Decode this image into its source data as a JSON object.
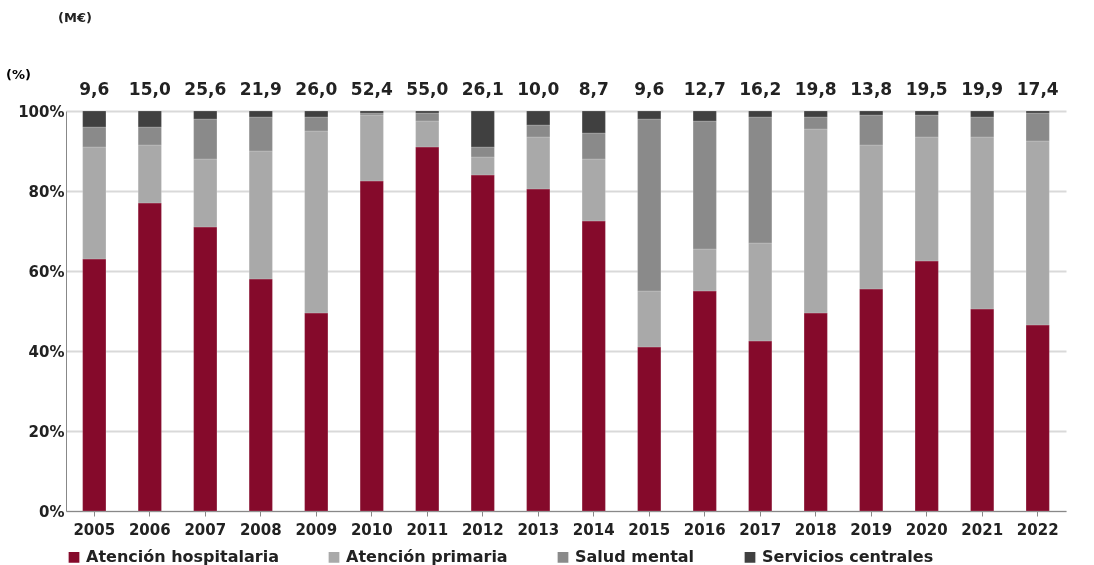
{
  "chart_data": {
    "type": "bar",
    "stacked": true,
    "ylabel": "(%)",
    "categories": [
      "2005",
      "2006",
      "2007",
      "2008",
      "2009",
      "2010",
      "2011",
      "2012",
      "2013",
      "2014",
      "2015",
      "2016",
      "2017",
      "2018",
      "2019",
      "2020",
      "2021",
      "2022"
    ],
    "series": [
      {
        "name": "Atención hospitalaria",
        "color": "#850a2b",
        "values": [
          63,
          77,
          71,
          58,
          49.5,
          82.5,
          91,
          84,
          80.5,
          72.5,
          41,
          55,
          42.5,
          49.5,
          55.5,
          62.5,
          50.5,
          46.5
        ]
      },
      {
        "name": "Atención primaria",
        "color": "#a9a9a9",
        "values": [
          28,
          14.5,
          17,
          32,
          45.5,
          16.5,
          6.5,
          4.5,
          13,
          15.5,
          14,
          10.5,
          24.5,
          46,
          36,
          31,
          43,
          46
        ]
      },
      {
        "name": "Salud mental",
        "color": "#8a8a8a",
        "values": [
          5,
          4.5,
          10,
          8.5,
          3.5,
          0.5,
          2,
          2.5,
          3,
          6.5,
          43,
          32,
          31.5,
          3,
          7.5,
          5.5,
          5,
          7
        ]
      },
      {
        "name": "Servicios centrales",
        "color": "#404040",
        "values": [
          4,
          4,
          2,
          1.5,
          1.5,
          0.5,
          0.5,
          9,
          3.5,
          5.5,
          2,
          2.5,
          1.5,
          1.5,
          1,
          1,
          1.5,
          0.5
        ]
      }
    ],
    "annotations": [
      "(M€)",
      {
        "text": "9,6",
        "x": "2005",
        "y": 100
      },
      {
        "text": "15,0",
        "x": "2006",
        "y": 100
      },
      {
        "text": "25,6",
        "x": "2007",
        "y": 100
      },
      {
        "text": "21,9",
        "x": "2008",
        "y": 100
      },
      {
        "text": "26,0",
        "x": "2009",
        "y": 100
      },
      {
        "text": "52,4",
        "x": "2010",
        "y": 100
      },
      {
        "text": "55,0",
        "x": "2011",
        "y": 100
      },
      {
        "text": "26,1",
        "x": "2012",
        "y": 100
      },
      {
        "text": "10,0",
        "x": "2013",
        "y": 100
      },
      {
        "text": "8,7",
        "x": "2014",
        "y": 100
      },
      {
        "text": "9,6",
        "x": "2015",
        "y": 100
      },
      {
        "text": "12,7",
        "x": "2016",
        "y": 100
      },
      {
        "text": "16,2",
        "x": "2017",
        "y": 100
      },
      {
        "text": "19,8",
        "x": "2018",
        "y": 100
      },
      {
        "text": "13,8",
        "x": "2019",
        "y": 100
      },
      {
        "text": "19,5",
        "x": "2020",
        "y": 100
      },
      {
        "text": "19,9",
        "x": "2021",
        "y": 100
      },
      {
        "text": "17,4",
        "x": "2022",
        "y": 100
      }
    ],
    "ylim": [
      0,
      100
    ],
    "yticks": [
      {
        "value": 0,
        "label": "0%"
      },
      {
        "value": 20,
        "label": "20%"
      },
      {
        "value": 40,
        "label": "40%"
      },
      {
        "value": 60,
        "label": "60%"
      },
      {
        "value": 80,
        "label": "80%"
      },
      {
        "value": 100,
        "label": "100%"
      }
    ],
    "grid": "y",
    "legend": "bottom"
  }
}
